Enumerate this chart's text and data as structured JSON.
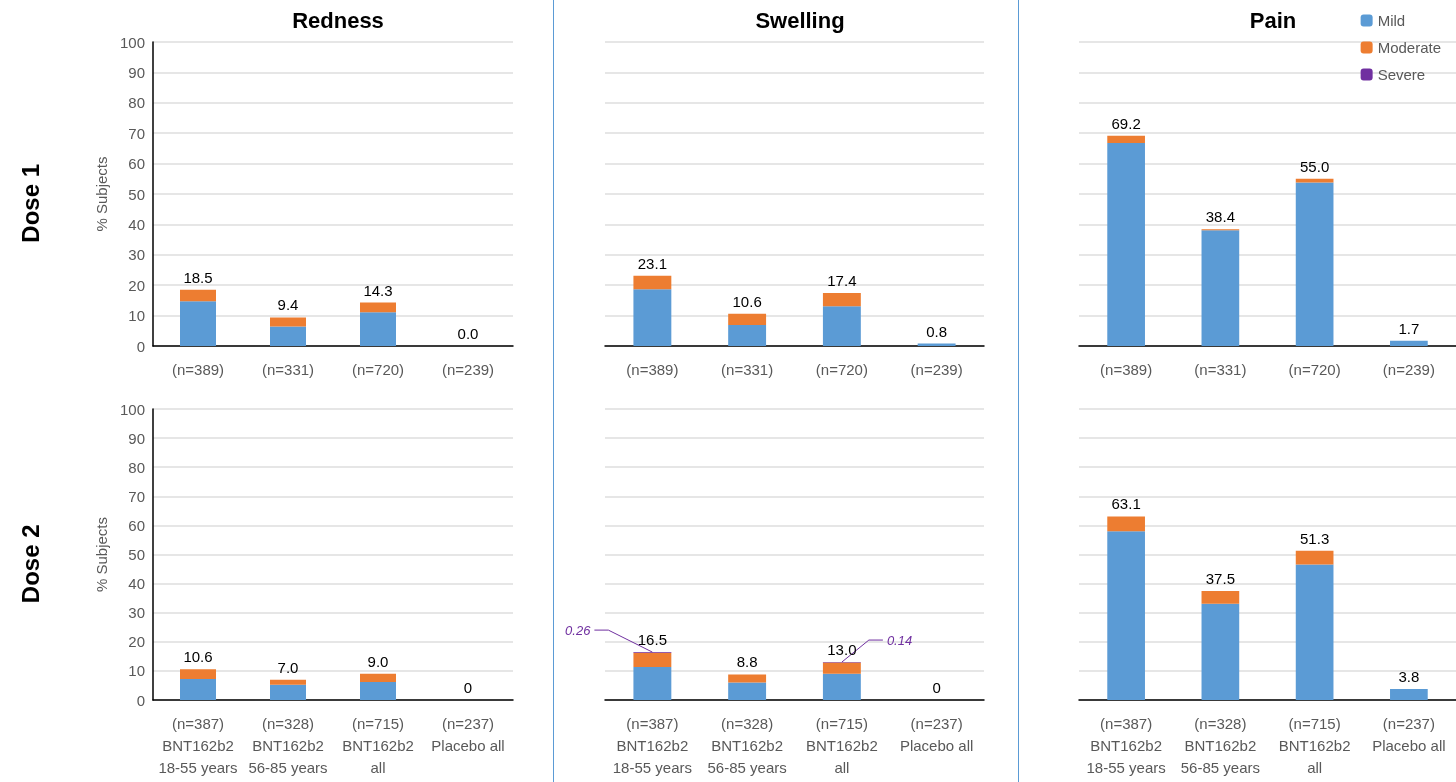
{
  "chart_data": [
    {
      "type": "bar",
      "title": "Redness",
      "ylabel": "% Subjects",
      "annotations": [
        "Dose 1"
      ],
      "categories": [
        "(n=389)",
        "(n=331)",
        "(n=720)",
        "(n=239)"
      ],
      "stacked": true,
      "ylim": [
        0,
        100
      ],
      "yticks": [
        0,
        10,
        20,
        30,
        40,
        50,
        60,
        70,
        80,
        90,
        100
      ],
      "grid": "y",
      "legend": false,
      "series": [
        {
          "color": "#5b9bd5",
          "values": [
            14.7,
            6.4,
            11.1,
            0
          ]
        },
        {
          "color": "#ed7d31",
          "values": [
            3.8,
            3.0,
            3.2,
            0
          ]
        },
        {
          "color": "#7030a0",
          "values": [
            0,
            0,
            0,
            0
          ]
        }
      ],
      "totals": [
        "18.5",
        "9.4",
        "14.3",
        "0.0"
      ]
    },
    {
      "type": "bar",
      "title": "Swelling",
      "categories": [
        "(n=389)",
        "(n=331)",
        "(n=720)",
        "(n=239)"
      ],
      "stacked": true,
      "ylim": [
        0,
        100
      ],
      "yticks": [
        0,
        10,
        20,
        30,
        40,
        50,
        60,
        70,
        80,
        90,
        100
      ],
      "grid": "y",
      "legend": false,
      "tick_labels": "x",
      "series": [
        {
          "color": "#5b9bd5",
          "values": [
            18.7,
            6.9,
            13.1,
            0.8
          ]
        },
        {
          "color": "#ed7d31",
          "values": [
            4.4,
            3.7,
            4.3,
            0
          ]
        },
        {
          "color": "#7030a0",
          "values": [
            0,
            0,
            0,
            0
          ]
        }
      ],
      "totals": [
        "23.1",
        "10.6",
        "17.4",
        "0.8"
      ]
    },
    {
      "type": "bar",
      "title": "Pain",
      "categories": [
        "(n=389)",
        "(n=331)",
        "(n=720)",
        "(n=239)"
      ],
      "stacked": true,
      "ylim": [
        0,
        100
      ],
      "yticks": [
        0,
        10,
        20,
        30,
        40,
        50,
        60,
        70,
        80,
        90,
        100
      ],
      "grid": "y",
      "legend": "top right",
      "tick_labels": "x",
      "series": [
        {
          "name": "Mild",
          "color": "#5b9bd5",
          "values": [
            66.8,
            38.1,
            53.8,
            1.7
          ]
        },
        {
          "name": "Moderate",
          "color": "#ed7d31",
          "values": [
            2.4,
            0.3,
            1.2,
            0
          ]
        },
        {
          "name": "Severe",
          "color": "#7030a0",
          "values": [
            0,
            0,
            0,
            0
          ]
        }
      ],
      "totals": [
        "69.2",
        "38.4",
        "55.0",
        "1.7"
      ]
    },
    {
      "type": "bar",
      "ylabel": "% Subjects",
      "annotations": [
        "Dose 2"
      ],
      "categories": [
        "(n=387)\nBNT162b2\n18-55 years",
        "(n=328)\nBNT162b2\n56-85 years",
        "(n=715)\nBNT162b2\nall",
        "(n=237)\nPlacebo all"
      ],
      "stacked": true,
      "ylim": [
        0,
        100
      ],
      "yticks": [
        0,
        10,
        20,
        30,
        40,
        50,
        60,
        70,
        80,
        90,
        100
      ],
      "grid": "y",
      "legend": false,
      "series": [
        {
          "color": "#5b9bd5",
          "values": [
            7.2,
            5.2,
            6.2,
            0
          ]
        },
        {
          "color": "#ed7d31",
          "values": [
            3.4,
            1.8,
            2.8,
            0
          ]
        },
        {
          "color": "#7030a0",
          "values": [
            0,
            0,
            0,
            0
          ]
        }
      ],
      "totals": [
        "10.6",
        "7.0",
        "9.0",
        "0"
      ]
    },
    {
      "type": "bar",
      "categories": [
        "(n=387)\nBNT162b2\n18-55 years",
        "(n=328)\nBNT162b2\n56-85 years",
        "(n=715)\nBNT162b2\nall",
        "(n=237)\nPlacebo all"
      ],
      "stacked": true,
      "ylim": [
        0,
        100
      ],
      "yticks": [
        0,
        10,
        20,
        30,
        40,
        50,
        60,
        70,
        80,
        90,
        100
      ],
      "grid": "y",
      "legend": false,
      "tick_labels": "x",
      "series": [
        {
          "color": "#5b9bd5",
          "values": [
            11.3,
            6.0,
            9.0,
            0
          ]
        },
        {
          "color": "#ed7d31",
          "values": [
            4.9,
            2.8,
            3.9,
            0
          ]
        },
        {
          "color": "#7030a0",
          "values": [
            0.26,
            0,
            0.14,
            0
          ],
          "value_labels": [
            "0.26",
            null,
            "0.14",
            null
          ]
        }
      ],
      "totals": [
        "16.5",
        "8.8",
        "13.0",
        "0"
      ]
    },
    {
      "type": "bar",
      "categories": [
        "(n=387)\nBNT162b2\n18-55 years",
        "(n=328)\nBNT162b2\n56-85 years",
        "(n=715)\nBNT162b2\nall",
        "(n=237)\nPlacebo all"
      ],
      "stacked": true,
      "ylim": [
        0,
        100
      ],
      "yticks": [
        0,
        10,
        20,
        30,
        40,
        50,
        60,
        70,
        80,
        90,
        100
      ],
      "grid": "y",
      "legend": false,
      "tick_labels": "x",
      "series": [
        {
          "color": "#5b9bd5",
          "values": [
            58.0,
            33.1,
            46.6,
            3.8
          ]
        },
        {
          "color": "#ed7d31",
          "values": [
            5.1,
            4.4,
            4.7,
            0
          ]
        },
        {
          "color": "#7030a0",
          "values": [
            0,
            0,
            0,
            0
          ]
        }
      ],
      "totals": [
        "63.1",
        "37.5",
        "51.3",
        "3.8"
      ]
    }
  ]
}
